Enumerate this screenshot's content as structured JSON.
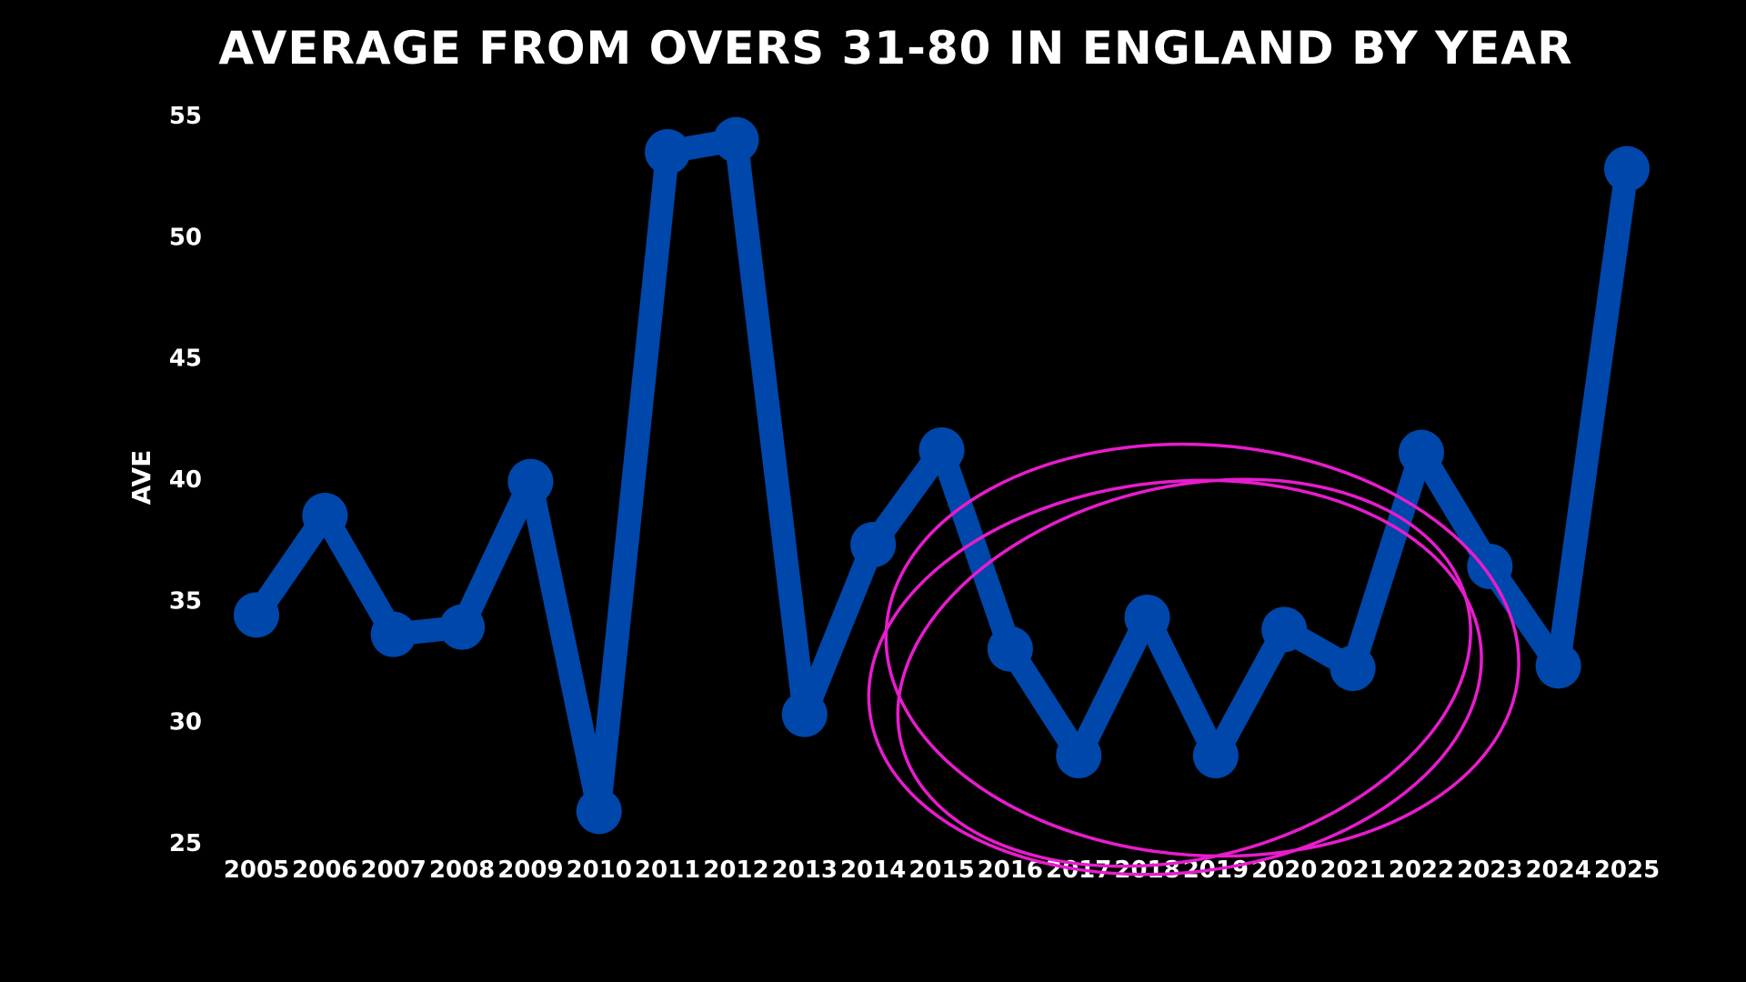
{
  "chart_data": {
    "type": "line",
    "title": "AVERAGE FROM OVERS 31-80 IN ENGLAND BY YEAR",
    "xlabel": "",
    "ylabel": "AVE",
    "ylim": [
      25,
      55
    ],
    "yticks": [
      25,
      30,
      35,
      40,
      45,
      50,
      55
    ],
    "grid": false,
    "categories": [
      "2005",
      "2006",
      "2007",
      "2008",
      "2009",
      "2010",
      "2011",
      "2012",
      "2013",
      "2014",
      "2015",
      "2016",
      "2017",
      "2018",
      "2019",
      "2020",
      "2021",
      "2022",
      "2023",
      "2024",
      "2025"
    ],
    "series": [
      {
        "name": "AVE",
        "values": [
          34.4,
          38.5,
          33.6,
          33.9,
          39.9,
          26.3,
          53.5,
          54.0,
          30.3,
          37.3,
          41.2,
          33.0,
          28.6,
          34.3,
          28.6,
          33.8,
          32.2,
          41.1,
          36.4,
          32.3,
          52.8
        ]
      }
    ],
    "annotation": {
      "type": "hand-drawn-circle",
      "highlight_from": "2016",
      "highlight_to": "2021",
      "color": "#e81ccd"
    }
  },
  "colors": {
    "background": "#000000",
    "line": "#0047ab",
    "text": "#ffffff",
    "annotation": "#e81ccd"
  }
}
